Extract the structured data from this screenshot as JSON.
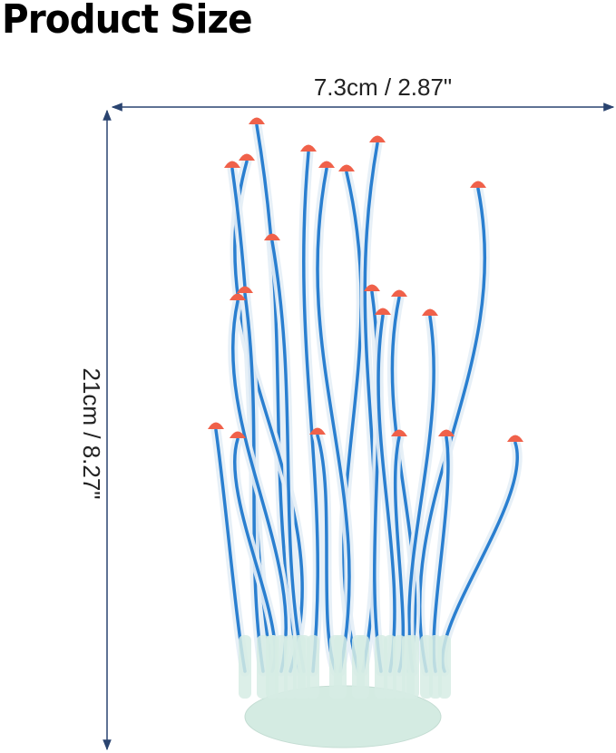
{
  "title": "Product Size",
  "dimensions": {
    "width": "7.3cm / 2.87\"",
    "height": "21cm / 8.27\""
  }
}
